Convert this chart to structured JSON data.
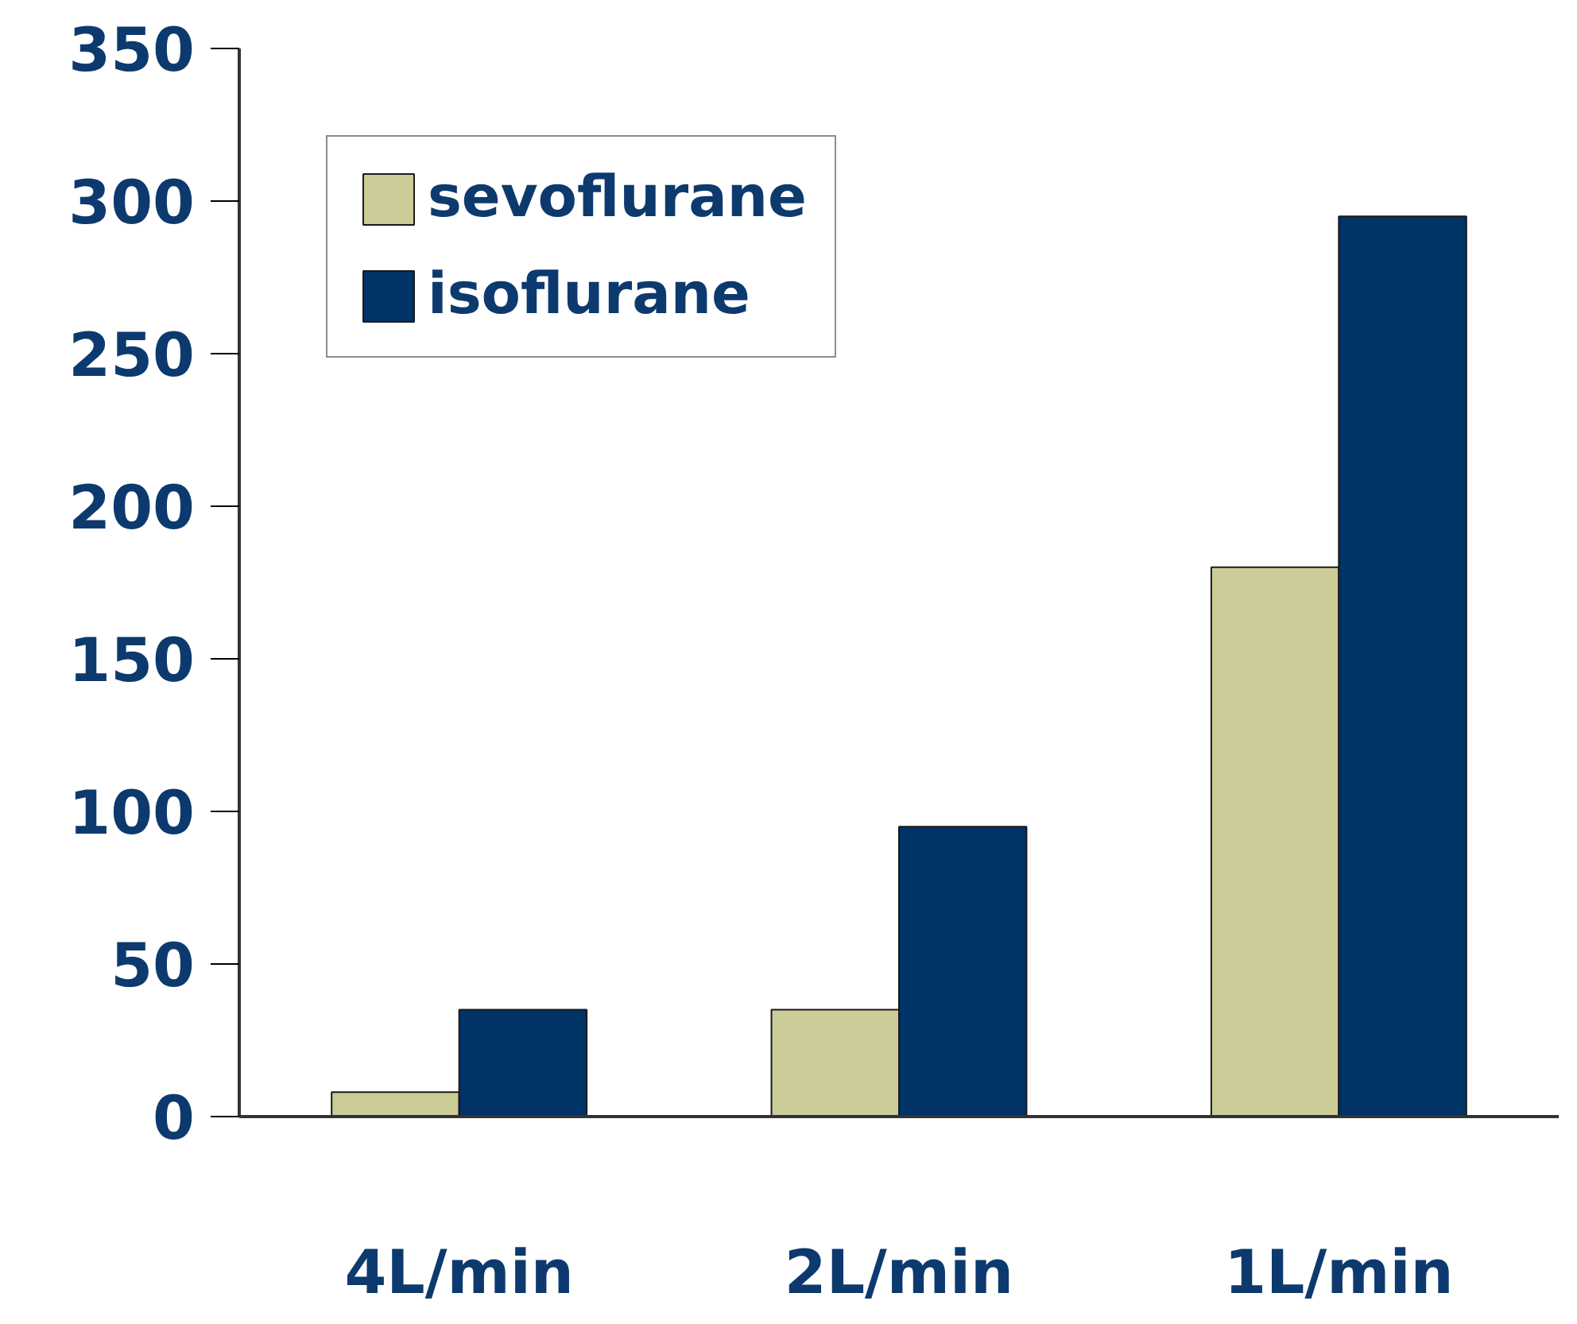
{
  "chart_data": {
    "type": "bar",
    "categories": [
      "4L/min",
      "2L/min",
      "1L/min"
    ],
    "series": [
      {
        "name": "sevoflurane",
        "color": "#cccc99",
        "values": [
          8,
          35,
          180
        ]
      },
      {
        "name": "isoflurane",
        "color": "#003366",
        "values": [
          35,
          95,
          295
        ]
      }
    ],
    "ylim": [
      0,
      350
    ],
    "yticks": [
      0,
      50,
      100,
      150,
      200,
      250,
      300,
      350
    ],
    "grid": false,
    "legend": "top left"
  }
}
